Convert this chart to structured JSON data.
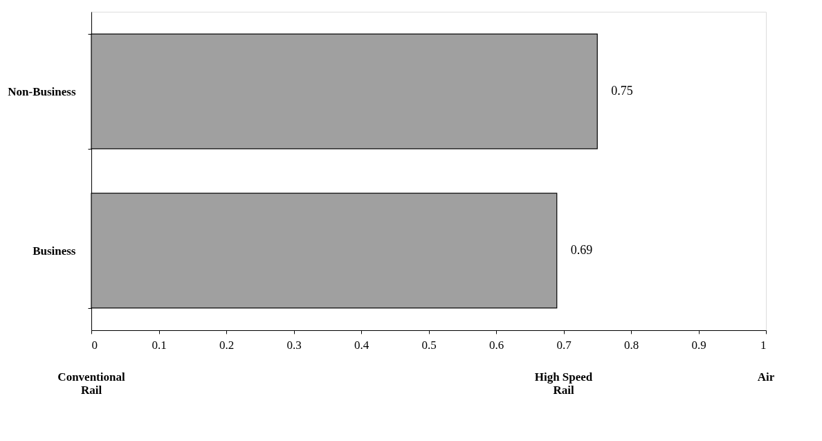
{
  "chart_data": {
    "type": "bar",
    "orientation": "horizontal",
    "categories": [
      "Non-Business",
      "Business"
    ],
    "values": [
      0.75,
      0.69
    ],
    "color": "#a0a0a0",
    "xlim": [
      0,
      1
    ],
    "xticks": [
      0,
      0.1,
      0.2,
      0.3,
      0.4,
      0.5,
      0.6,
      0.7,
      0.8,
      0.9,
      1
    ],
    "data_labels": true,
    "grid": false,
    "annotations": [
      "Conventional\nRail",
      "High Speed\nRail",
      "Air"
    ]
  }
}
